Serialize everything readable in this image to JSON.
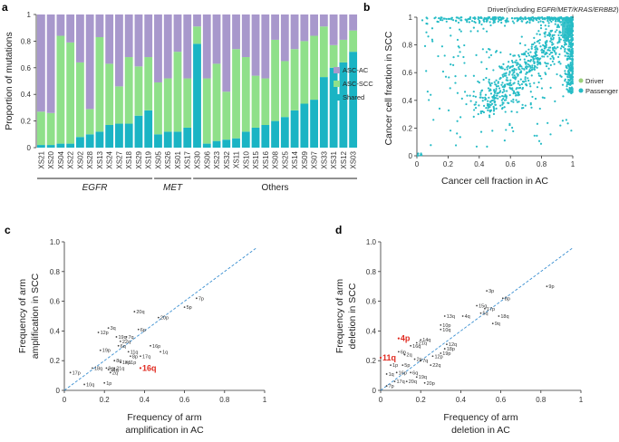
{
  "colors": {
    "shared": "#1ab4c4",
    "asc_scc": "#8fe08a",
    "asc_ac": "#a898cc",
    "dot": "#27bcc6",
    "diag": "#3a8fd1",
    "highlight": "#e0281e"
  },
  "chart_data": [
    {
      "panel": "a",
      "type": "bar",
      "ylabel": "Proportion of mutations",
      "ylim": [
        0,
        1
      ],
      "yticks": [
        "0",
        "0.2",
        "0.4",
        "0.6",
        "0.8",
        "1"
      ],
      "legend": [
        "ASC-AC",
        "ASC-SCC",
        "Shared"
      ],
      "categories": [
        "XS21",
        "XS20",
        "XS04",
        "XS22",
        "XS02",
        "XS28",
        "XS13",
        "XS24",
        "XS27",
        "XS18",
        "XS29",
        "XS19",
        "XS05",
        "XS26",
        "XS01",
        "XS17",
        "XS30",
        "XS06",
        "XS23",
        "XS32",
        "XS11",
        "XS10",
        "XS15",
        "XS16",
        "XS08",
        "XS25",
        "XS14",
        "XS09",
        "XS07",
        "XS33",
        "XS31",
        "XS12",
        "XS03"
      ],
      "series": [
        {
          "name": "Shared",
          "values": [
            0.02,
            0.02,
            0.03,
            0.03,
            0.08,
            0.1,
            0.12,
            0.17,
            0.18,
            0.18,
            0.24,
            0.28,
            0.1,
            0.12,
            0.12,
            0.15,
            0.78,
            0.03,
            0.05,
            0.06,
            0.07,
            0.12,
            0.15,
            0.17,
            0.2,
            0.23,
            0.28,
            0.33,
            0.36,
            0.53,
            0.6,
            0.64,
            0.72
          ]
        },
        {
          "name": "ASC-SCC",
          "values": [
            0.25,
            0.24,
            0.81,
            0.76,
            0.56,
            0.19,
            0.71,
            0.46,
            0.28,
            0.5,
            0.37,
            0.4,
            0.39,
            0.4,
            0.6,
            0.37,
            0.13,
            0.49,
            0.58,
            0.36,
            0.67,
            0.56,
            0.39,
            0.35,
            0.61,
            0.42,
            0.46,
            0.47,
            0.48,
            0.38,
            0.17,
            0.17,
            0.16
          ]
        },
        {
          "name": "ASC-AC",
          "values": [
            0.73,
            0.74,
            0.16,
            0.21,
            0.36,
            0.71,
            0.17,
            0.37,
            0.54,
            0.32,
            0.39,
            0.32,
            0.51,
            0.48,
            0.28,
            0.48,
            0.09,
            0.48,
            0.37,
            0.58,
            0.26,
            0.32,
            0.46,
            0.48,
            0.19,
            0.35,
            0.26,
            0.2,
            0.16,
            0.09,
            0.23,
            0.19,
            0.12
          ]
        }
      ],
      "groups": [
        {
          "name": "EGFR",
          "from": 0,
          "to": 11
        },
        {
          "name": "MET",
          "from": 12,
          "to": 15
        },
        {
          "name": "Others",
          "from": 16,
          "to": 32
        }
      ]
    },
    {
      "panel": "b",
      "type": "scatter",
      "xlabel": "Cancer cell fraction in AC",
      "ylabel": "Cancer cell fraction in SCC",
      "xlim": [
        0,
        1
      ],
      "ylim": [
        0,
        1
      ],
      "xticks": [
        "0",
        "0.2",
        "0.4",
        "0.6",
        "0.8",
        "1"
      ],
      "yticks": [
        "0",
        "0.2",
        "0.4",
        "0.6",
        "0.8",
        "1"
      ],
      "legend": [
        "Driver",
        "Passenger"
      ],
      "annotation": "Driver(including ",
      "annotation_italic": "EGFR/MET/KRAS/ERBB2",
      "annotation_end": ")",
      "points_passenger_sample": [
        [
          0.45,
          0.38
        ],
        [
          0.5,
          0.42
        ],
        [
          0.55,
          0.5
        ],
        [
          0.6,
          0.62
        ],
        [
          0.7,
          0.6
        ],
        [
          1,
          1
        ],
        [
          0.6,
          1
        ],
        [
          0.3,
          1
        ],
        [
          1,
          0.6
        ],
        [
          1,
          0.8
        ]
      ]
    },
    {
      "panel": "c",
      "type": "scatter",
      "xlabel": "Frequency of arm",
      "xlabel2": "amplification in AC",
      "ylabel": "Frequency of arm",
      "ylabel2": "amplification in  SCC",
      "xlim": [
        0,
        1
      ],
      "ylim": [
        0,
        1
      ],
      "xticks": [
        "0",
        "0.2",
        "0.4",
        "0.6",
        "0.8",
        "1"
      ],
      "yticks": [
        "0",
        "0.2",
        "0.4",
        "0.6",
        "0.8",
        "1.0"
      ],
      "points": [
        {
          "l": "7p",
          "x": 0.66,
          "y": 0.62
        },
        {
          "l": "5p",
          "x": 0.6,
          "y": 0.56
        },
        {
          "l": "20q",
          "x": 0.35,
          "y": 0.53
        },
        {
          "l": "20p",
          "x": 0.47,
          "y": 0.49
        },
        {
          "l": "3q",
          "x": 0.22,
          "y": 0.42
        },
        {
          "l": "6p",
          "x": 0.37,
          "y": 0.41
        },
        {
          "l": "12p",
          "x": 0.17,
          "y": 0.39
        },
        {
          "l": "19q",
          "x": 0.26,
          "y": 0.36
        },
        {
          "l": "7q",
          "x": 0.31,
          "y": 0.36
        },
        {
          "l": "22q",
          "x": 0.28,
          "y": 0.33
        },
        {
          "l": "6q",
          "x": 0.27,
          "y": 0.3
        },
        {
          "l": "16p",
          "x": 0.43,
          "y": 0.3
        },
        {
          "l": "19p",
          "x": 0.18,
          "y": 0.27
        },
        {
          "l": "11q",
          "x": 0.32,
          "y": 0.26
        },
        {
          "l": "8p",
          "x": 0.33,
          "y": 0.23
        },
        {
          "l": "17q",
          "x": 0.38,
          "y": 0.23
        },
        {
          "l": "1q",
          "x": 0.48,
          "y": 0.26
        },
        {
          "l": "8q",
          "x": 0.25,
          "y": 0.2
        },
        {
          "l": "18q",
          "x": 0.14,
          "y": 0.15
        },
        {
          "l": "9q",
          "x": 0.21,
          "y": 0.15
        },
        {
          "l": "21q",
          "x": 0.25,
          "y": 0.15
        },
        {
          "l": "18p",
          "x": 0.28,
          "y": 0.19
        },
        {
          "l": "11p",
          "x": 0.31,
          "y": 0.19
        },
        {
          "l": "14q",
          "x": 0.22,
          "y": 0.14
        },
        {
          "l": "2q",
          "x": 0.23,
          "y": 0.12
        },
        {
          "l": "17p",
          "x": 0.03,
          "y": 0.12
        },
        {
          "l": "1p",
          "x": 0.2,
          "y": 0.05
        },
        {
          "l": "10q",
          "x": 0.1,
          "y": 0.04
        }
      ],
      "highlight": {
        "l": "16q",
        "x": 0.38,
        "y": 0.15
      }
    },
    {
      "panel": "d",
      "type": "scatter",
      "xlabel": "Frequency of arm",
      "xlabel2": "deletion in AC",
      "ylabel": "Frequency of arm",
      "ylabel2": "deletion in SCC",
      "xlim": [
        0,
        1
      ],
      "ylim": [
        0,
        1
      ],
      "xticks": [
        "0",
        "0.2",
        "0.4",
        "0.6",
        "0.8",
        "1"
      ],
      "yticks": [
        "0",
        "0.2",
        "0.4",
        "0.6",
        "0.8",
        "1.0"
      ],
      "points": [
        {
          "l": "9p",
          "x": 0.83,
          "y": 0.7
        },
        {
          "l": "3p",
          "x": 0.53,
          "y": 0.67
        },
        {
          "l": "8p",
          "x": 0.61,
          "y": 0.62
        },
        {
          "l": "15q",
          "x": 0.48,
          "y": 0.57
        },
        {
          "l": "17p",
          "x": 0.52,
          "y": 0.55
        },
        {
          "l": "5q",
          "x": 0.5,
          "y": 0.52
        },
        {
          "l": "13q",
          "x": 0.32,
          "y": 0.5
        },
        {
          "l": "4q",
          "x": 0.41,
          "y": 0.5
        },
        {
          "l": "18q",
          "x": 0.59,
          "y": 0.5
        },
        {
          "l": "10p",
          "x": 0.3,
          "y": 0.44
        },
        {
          "l": "10q",
          "x": 0.3,
          "y": 0.41
        },
        {
          "l": "9q",
          "x": 0.56,
          "y": 0.45
        },
        {
          "l": "14q",
          "x": 0.2,
          "y": 0.34
        },
        {
          "l": "21q",
          "x": 0.18,
          "y": 0.32
        },
        {
          "l": "16q",
          "x": 0.15,
          "y": 0.3
        },
        {
          "l": "12q",
          "x": 0.33,
          "y": 0.31
        },
        {
          "l": "18p",
          "x": 0.32,
          "y": 0.28
        },
        {
          "l": "6p",
          "x": 0.09,
          "y": 0.26
        },
        {
          "l": "2q",
          "x": 0.12,
          "y": 0.24
        },
        {
          "l": "12p",
          "x": 0.26,
          "y": 0.23
        },
        {
          "l": "19p",
          "x": 0.3,
          "y": 0.25
        },
        {
          "l": "2p",
          "x": 0.17,
          "y": 0.21
        },
        {
          "l": "7q",
          "x": 0.2,
          "y": 0.2
        },
        {
          "l": "22q",
          "x": 0.25,
          "y": 0.17
        },
        {
          "l": "1p",
          "x": 0.05,
          "y": 0.17
        },
        {
          "l": "5p",
          "x": 0.11,
          "y": 0.17
        },
        {
          "l": "16p",
          "x": 0.08,
          "y": 0.12
        },
        {
          "l": "6q",
          "x": 0.15,
          "y": 0.12
        },
        {
          "l": "19q",
          "x": 0.18,
          "y": 0.09
        },
        {
          "l": "20p",
          "x": 0.22,
          "y": 0.05
        },
        {
          "l": "17q",
          "x": 0.07,
          "y": 0.06
        },
        {
          "l": "20q",
          "x": 0.13,
          "y": 0.06
        },
        {
          "l": "1q",
          "x": 0.03,
          "y": 0.11
        },
        {
          "l": "7p",
          "x": 0.03,
          "y": 0.03
        }
      ],
      "highlights": [
        {
          "l": "4p",
          "x": 0.09,
          "y": 0.35
        },
        {
          "l": "11q",
          "x": 0.0,
          "y": 0.22
        }
      ]
    }
  ]
}
